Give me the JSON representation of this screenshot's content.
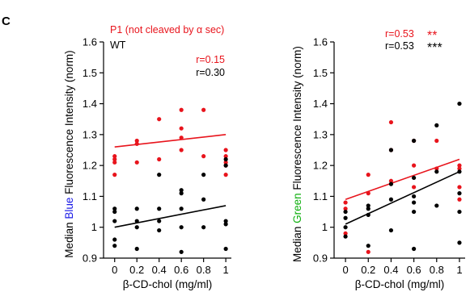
{
  "panel_letter": "C",
  "colors": {
    "red": "#e8141c",
    "black": "#000000",
    "blue": "#1a1ae6",
    "green": "#11b011"
  },
  "chart_data": [
    {
      "type": "scatter",
      "xlabel": "β-CD-chol (mg/ml)",
      "ylabel_parts": [
        "Median ",
        "Blue",
        " Fluorescence Intensity (norm)"
      ],
      "ylabel_highlight_color": "#1a1ae6",
      "xlim": [
        -0.1,
        1.05
      ],
      "ylim": [
        0.9,
        1.6
      ],
      "xticks": [
        0,
        0.2,
        0.4,
        0.6,
        0.8,
        1
      ],
      "xtick_labels": [
        "0",
        "0.2",
        "0.4",
        "0.6",
        "0.8",
        "1"
      ],
      "yticks": [
        0.9,
        1,
        1.1,
        1.2,
        1.3,
        1.4,
        1.5,
        1.6
      ],
      "ytick_labels": [
        "0.9",
        "1",
        "1.1",
        "1.2",
        "1.3",
        "1.4",
        "1.5",
        "1.6"
      ],
      "legend": [
        {
          "name": "P1 (not cleaved  by α sec)",
          "color": "#e8141c"
        },
        {
          "name": "WT",
          "color": "#000000"
        }
      ],
      "annotations": [
        {
          "text": "r=0.15",
          "color": "#e8141c"
        },
        {
          "text": "r=0.30",
          "color": "#000000"
        }
      ],
      "series": [
        {
          "color": "#e8141c",
          "x": [
            0,
            0,
            0,
            0,
            0.2,
            0.2,
            0.2,
            0.4,
            0.4,
            0.6,
            0.6,
            0.6,
            0.6,
            0.8,
            0.8,
            1,
            1,
            1,
            1,
            1
          ],
          "y": [
            1.23,
            1.22,
            1.21,
            1.17,
            1.28,
            1.27,
            1.21,
            1.35,
            1.22,
            1.38,
            1.32,
            1.29,
            1.25,
            1.38,
            1.23,
            1.25,
            1.23,
            1.21,
            1.2,
            1.17
          ],
          "fit": [
            1.26,
            1.3
          ]
        },
        {
          "color": "#000000",
          "x": [
            0,
            0,
            0,
            0,
            0,
            0.2,
            0.2,
            0.2,
            0.2,
            0.4,
            0.4,
            0.4,
            0.4,
            0.6,
            0.6,
            0.6,
            0.6,
            0.6,
            0.8,
            0.8,
            0.8,
            1,
            1,
            1,
            1,
            1
          ],
          "y": [
            1.06,
            1.05,
            1.02,
            0.96,
            0.94,
            1.06,
            1.02,
            1.0,
            0.93,
            1.17,
            1.06,
            1.02,
            0.99,
            1.12,
            1.11,
            1.06,
            1.0,
            0.92,
            1.17,
            1.09,
            1.0,
            1.22,
            1.2,
            1.02,
            1.01,
            0.93
          ],
          "fit": [
            1.0,
            1.07
          ]
        }
      ]
    },
    {
      "type": "scatter",
      "xlabel": "β-CD-chol (mg/ml)",
      "ylabel_parts": [
        "Median ",
        "Green",
        " Fluorescence Intensity (norm)"
      ],
      "ylabel_highlight_color": "#11b011",
      "xlim": [
        -0.1,
        1.05
      ],
      "ylim": [
        0.9,
        1.6
      ],
      "xticks": [
        0,
        0.2,
        0.4,
        0.6,
        0.8,
        1
      ],
      "xtick_labels": [
        "0",
        "0.2",
        "0.4",
        "0.6",
        "0.8",
        "1"
      ],
      "yticks": [
        0.9,
        1,
        1.1,
        1.2,
        1.3,
        1.4,
        1.5,
        1.6
      ],
      "ytick_labels": [
        "0.9",
        "1",
        "1.1",
        "1.2",
        "1.3",
        "1.4",
        "1.5",
        "1.6"
      ],
      "legend": [],
      "annotations": [
        {
          "text": "r=0.53",
          "stars": "**",
          "color": "#e8141c"
        },
        {
          "text": "r=0.53",
          "stars": "***",
          "color": "#000000"
        }
      ],
      "series": [
        {
          "color": "#e8141c",
          "x": [
            0,
            0,
            0,
            0.2,
            0.2,
            0.2,
            0.4,
            0.4,
            0.4,
            0.6,
            0.6,
            0.6,
            0.8,
            0.8,
            1,
            1,
            1,
            1
          ],
          "y": [
            1.08,
            1.06,
            0.98,
            1.17,
            1.11,
            0.92,
            1.34,
            1.25,
            1.15,
            1.28,
            1.2,
            1.13,
            1.28,
            1.19,
            1.2,
            1.19,
            1.13,
            1.09
          ],
          "fit": [
            1.09,
            1.22
          ]
        },
        {
          "color": "#000000",
          "x": [
            0,
            0,
            0,
            0,
            0.2,
            0.2,
            0.2,
            0.2,
            0.4,
            0.4,
            0.4,
            0.4,
            0.6,
            0.6,
            0.6,
            0.6,
            0.6,
            0.6,
            0.8,
            0.8,
            0.8,
            1,
            1,
            1,
            1,
            1
          ],
          "y": [
            1.05,
            1.03,
            1.0,
            0.97,
            1.07,
            1.06,
            1.04,
            0.94,
            1.25,
            1.14,
            1.09,
            0.99,
            1.28,
            1.16,
            1.1,
            1.08,
            1.05,
            0.93,
            1.33,
            1.18,
            1.07,
            1.4,
            1.18,
            1.11,
            1.05,
            0.95
          ],
          "fit": [
            1.01,
            1.18
          ]
        }
      ]
    }
  ]
}
